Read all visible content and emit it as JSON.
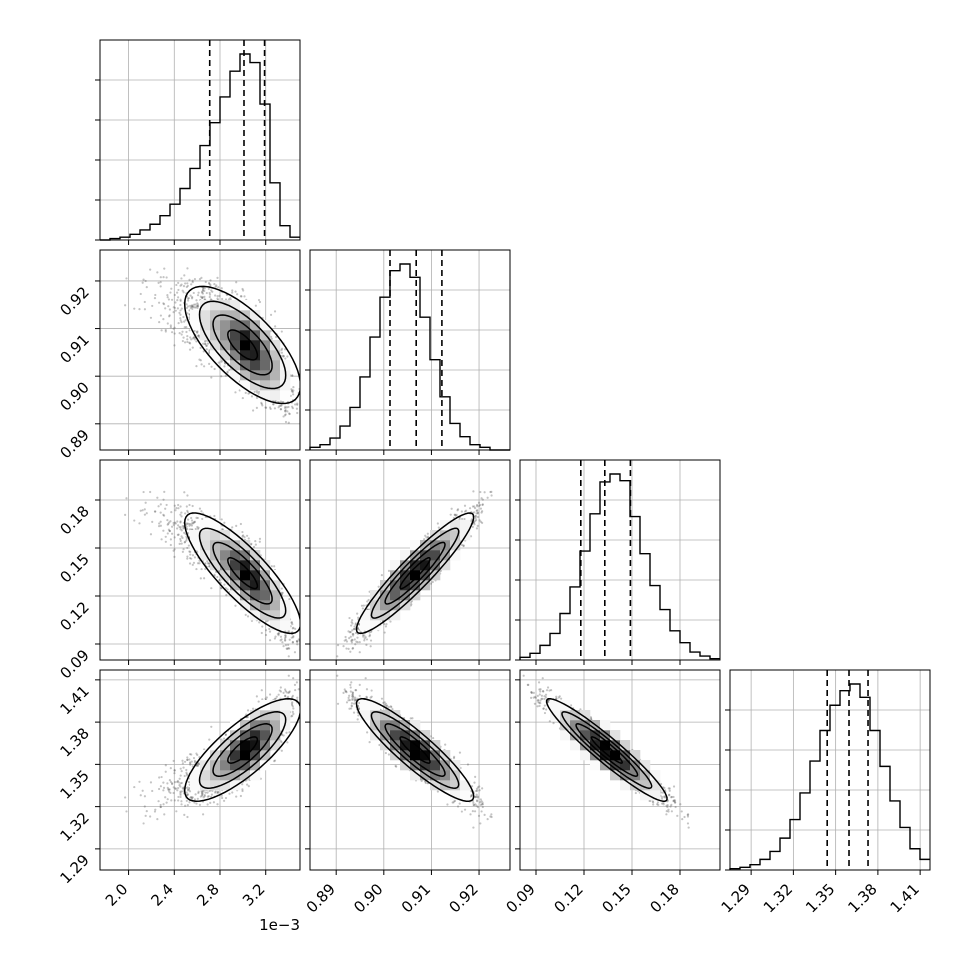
{
  "chart_data": {
    "type": "corner",
    "grid": true,
    "colors": {
      "ink": "#000000",
      "grid": "#b0b0b0",
      "scatter": "#555555"
    },
    "parameters": [
      {
        "range": [
          1.75,
          3.5
        ],
        "ticks": [
          2.0,
          2.4,
          2.8,
          3.2
        ],
        "tick_labels": [
          "2.0",
          "2.4",
          "2.8",
          "3.2"
        ],
        "offset_text": "1e−3",
        "mean": 3.0,
        "std": 0.2,
        "skew": -0.6,
        "quantiles": [
          2.71,
          3.01,
          3.19
        ],
        "hist": [
          0,
          1,
          2,
          4,
          7,
          11,
          17,
          25,
          36,
          50,
          66,
          82,
          100,
          118,
          130,
          124,
          95,
          40,
          10,
          2
        ]
      },
      {
        "range": [
          0.8845,
          0.9265
        ],
        "ticks": [
          0.89,
          0.9,
          0.91,
          0.92
        ],
        "tick_labels": [
          "0.89",
          "0.90",
          "0.91",
          "0.92"
        ],
        "offset_text": "",
        "mean": 0.9065,
        "std": 0.0052,
        "skew": 0,
        "quantiles": [
          0.9013,
          0.9068,
          0.9122
        ],
        "hist": [
          2,
          4,
          9,
          18,
          32,
          55,
          85,
          115,
          135,
          140,
          130,
          100,
          68,
          40,
          20,
          10,
          4,
          2,
          0,
          0
        ]
      },
      {
        "range": [
          0.08,
          0.205
        ],
        "ticks": [
          0.09,
          0.12,
          0.15,
          0.18
        ],
        "tick_labels": [
          "0.09",
          "0.12",
          "0.15",
          "0.18"
        ],
        "offset_text": "",
        "mean": 0.134,
        "std": 0.016,
        "skew": 0,
        "quantiles": [
          0.118,
          0.133,
          0.149
        ],
        "hist": [
          2,
          5,
          11,
          20,
          35,
          55,
          82,
          110,
          134,
          140,
          135,
          108,
          80,
          56,
          38,
          22,
          13,
          6,
          3,
          1
        ]
      },
      {
        "range": [
          1.275,
          1.417
        ],
        "ticks": [
          1.29,
          1.32,
          1.35,
          1.38,
          1.41
        ],
        "tick_labels": [
          "1.29",
          "1.32",
          "1.35",
          "1.38",
          "1.41"
        ],
        "offset_text": "",
        "mean": 1.3605,
        "std": 0.0155,
        "skew": 0,
        "quantiles": [
          1.344,
          1.3595,
          1.373
        ],
        "hist": [
          1,
          2,
          4,
          8,
          14,
          24,
          38,
          58,
          82,
          105,
          124,
          135,
          140,
          130,
          105,
          78,
          52,
          32,
          16,
          8
        ]
      }
    ],
    "correlations": [
      [
        1,
        -0.72,
        -0.86,
        0.82
      ],
      [
        -0.72,
        1,
        0.93,
        -0.9
      ],
      [
        -0.86,
        0.93,
        1,
        -0.95
      ],
      [
        0.82,
        -0.9,
        -0.95,
        1
      ]
    ]
  }
}
